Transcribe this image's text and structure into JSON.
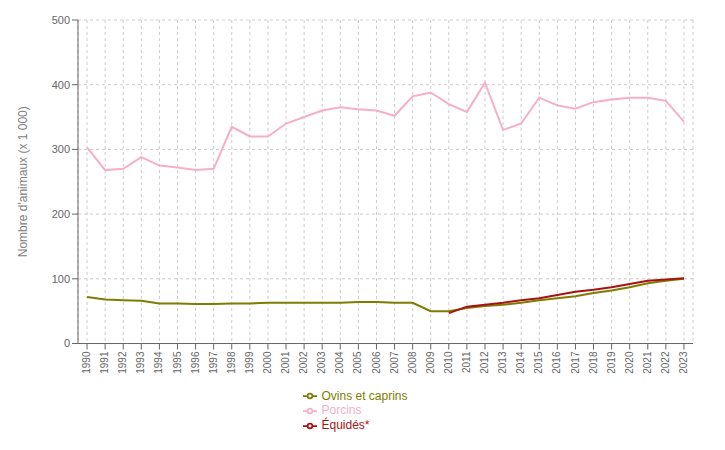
{
  "chart_data": {
    "type": "line",
    "y_label": "Nombre d'animaux (x 1 000)",
    "x": [
      1990,
      1991,
      1992,
      1993,
      1994,
      1995,
      1996,
      1997,
      1998,
      1999,
      2000,
      2001,
      2002,
      2003,
      2004,
      2005,
      2006,
      2007,
      2008,
      2009,
      2010,
      2011,
      2012,
      2013,
      2014,
      2015,
      2016,
      2017,
      2018,
      2019,
      2020,
      2021,
      2022,
      2023
    ],
    "series": [
      {
        "name": "Porcins",
        "color": "#f7aec8",
        "values": [
          303,
          268,
          270,
          288,
          275,
          272,
          268,
          270,
          335,
          320,
          320,
          340,
          350,
          360,
          365,
          362,
          360,
          352,
          382,
          388,
          370,
          358,
          403,
          330,
          340,
          380,
          368,
          363,
          373,
          377,
          380,
          380,
          375,
          343
        ]
      },
      {
        "name": "Ovins et caprins",
        "color": "#7d7d00",
        "values": [
          72,
          68,
          67,
          66,
          62,
          62,
          61,
          61,
          62,
          62,
          63,
          63,
          63,
          63,
          63,
          64,
          64,
          63,
          63,
          50,
          50,
          55,
          58,
          60,
          63,
          67,
          70,
          73,
          78,
          82,
          87,
          93,
          97,
          100
        ]
      },
      {
        "name": "Équidés*",
        "color": "#aa1111",
        "values": [
          null,
          null,
          null,
          null,
          null,
          null,
          null,
          null,
          null,
          null,
          null,
          null,
          null,
          null,
          null,
          null,
          null,
          null,
          null,
          null,
          47,
          57,
          60,
          63,
          67,
          70,
          75,
          80,
          83,
          87,
          92,
          97,
          99,
          101
        ]
      }
    ],
    "xlim": [
      1989.5,
      2023.5
    ],
    "xticks": [
      1990,
      1991,
      1992,
      1993,
      1994,
      1995,
      1996,
      1997,
      1998,
      1999,
      2000,
      2001,
      2002,
      2003,
      2004,
      2005,
      2006,
      2007,
      2008,
      2009,
      2010,
      2011,
      2012,
      2013,
      2014,
      2015,
      2016,
      2017,
      2018,
      2019,
      2020,
      2021,
      2022,
      2023
    ],
    "ylim": [
      0,
      500
    ],
    "yticks": [
      0,
      100,
      200,
      300,
      400,
      500
    ],
    "grid": true,
    "legend": "bottom"
  }
}
